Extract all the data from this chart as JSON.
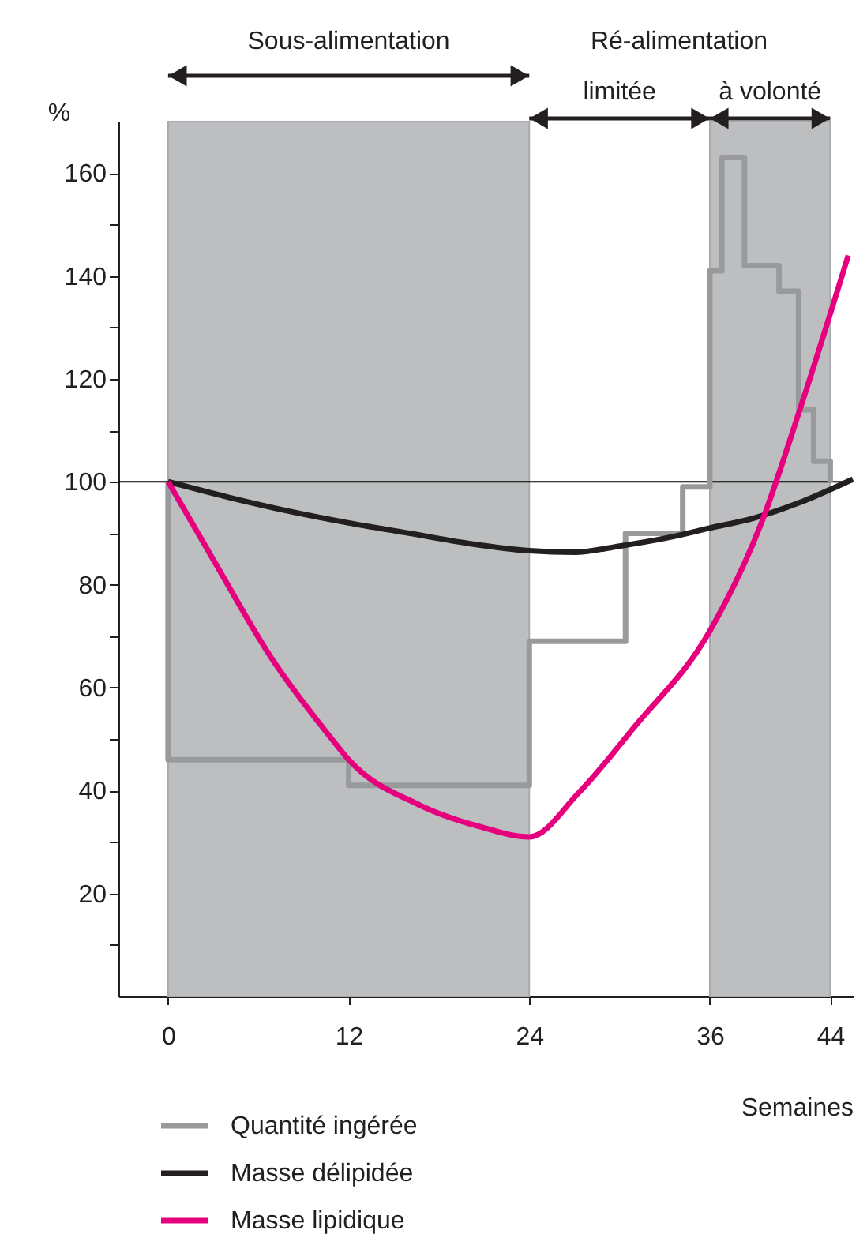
{
  "chart_data": {
    "type": "line",
    "xlabel": "Semaines",
    "ylabel": "%",
    "xlim": [
      -3.3,
      45.5
    ],
    "xticks": [
      0,
      12,
      24,
      36,
      44
    ],
    "ylim": [
      0,
      170
    ],
    "yticks": [
      {
        "value": 10,
        "label": null
      },
      20,
      {
        "value": 30,
        "label": null
      },
      40,
      {
        "value": 50,
        "label": null
      },
      60,
      {
        "value": 70,
        "label": null
      },
      80,
      {
        "value": 90,
        "label": null
      },
      100,
      {
        "value": 110,
        "label": null
      },
      120,
      {
        "value": 130,
        "label": null
      },
      140,
      {
        "value": 150,
        "label": null
      },
      160
    ],
    "grid": false,
    "legend": "bottom",
    "series": [
      {
        "name": "Quantité ingérée",
        "type": "step",
        "color": "#999a9c",
        "x": [
          0,
          0,
          12,
          24,
          30.4,
          34.2,
          36,
          36.8,
          38.3,
          40.6,
          41.9,
          42.9,
          44
        ],
        "values": [
          100,
          46,
          41,
          69,
          90,
          99,
          141,
          163,
          142,
          137,
          114,
          104,
          100
        ]
      },
      {
        "name": "Masse délipidée",
        "type": "line",
        "color": "#231f20",
        "x": [
          0,
          4,
          8,
          12,
          16,
          20,
          24,
          27,
          30,
          33,
          36,
          39,
          42,
          45.5
        ],
        "values": [
          100,
          97,
          94.3,
          92,
          90,
          88,
          86.6,
          86.3,
          87.5,
          89,
          91,
          93,
          96,
          100.5
        ]
      },
      {
        "name": "Masse lipidique",
        "type": "line",
        "color": "#e6007e",
        "x": [
          0,
          2.9,
          6.9,
          10.8,
          12,
          16.7,
          20.7,
          24,
          27.3,
          31,
          36,
          39.4,
          42.2,
          45.2
        ],
        "values": [
          100,
          85.4,
          65.6,
          50.3,
          46,
          37.2,
          33,
          31,
          39.6,
          52.4,
          71,
          91.8,
          116,
          144
        ]
      }
    ],
    "ref_lines": [
      {
        "axis": "y",
        "value": 100,
        "label": null,
        "color": "#000000"
      }
    ],
    "bands": [
      {
        "axis": "x",
        "from": 0,
        "to": 24,
        "label": "Sous-alimentation",
        "color": "#bcbec0"
      },
      {
        "axis": "x",
        "from": 36,
        "to": 44,
        "label": "à volonté",
        "color": "#bcbec0"
      }
    ],
    "annotations": [
      "Ré-alimentation",
      "limitée"
    ]
  }
}
